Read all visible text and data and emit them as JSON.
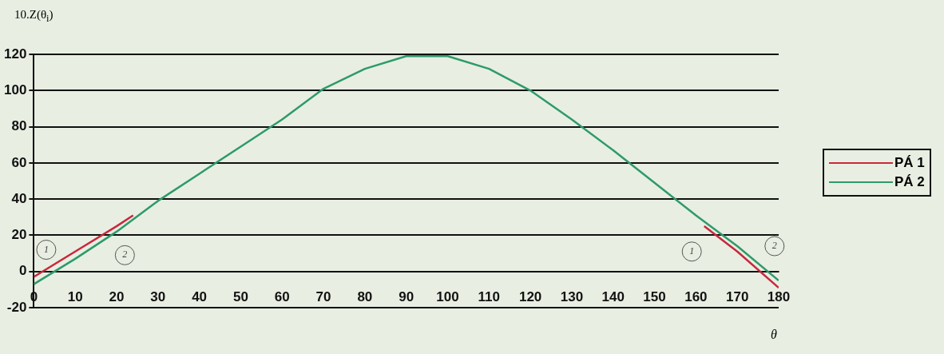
{
  "chart_data": {
    "type": "line",
    "xlabel": "θ",
    "ylabel": "10.Z(θ$_{i}$)",
    "xlim": [
      0,
      180
    ],
    "xticks": [
      0,
      10,
      20,
      30,
      40,
      50,
      60,
      70,
      80,
      90,
      100,
      110,
      120,
      130,
      140,
      150,
      160,
      170,
      180
    ],
    "ylim": [
      -20,
      120
    ],
    "yticks": [
      -20,
      0,
      20,
      40,
      60,
      80,
      100,
      120
    ],
    "grid": "y",
    "legend": "right",
    "marker": "none",
    "line_style": "solid",
    "series": [
      {
        "name": "PÁ 1",
        "color": "#c8283c",
        "x": [
          0,
          10,
          20,
          24,
          100,
          162,
          170,
          180
        ],
        "values": [
          -3,
          11,
          25,
          31,
          null,
          25,
          11,
          -9
        ]
      },
      {
        "name": "PÁ 2",
        "color": "#2e9a6a",
        "x": [
          0,
          10,
          20,
          30,
          40,
          50,
          60,
          70,
          80,
          90,
          100,
          110,
          120,
          130,
          140,
          150,
          160,
          170,
          180
        ],
        "values": [
          -7,
          7,
          22,
          39,
          54,
          69,
          84,
          101,
          112,
          119,
          119,
          112,
          100,
          84,
          67,
          49,
          31,
          14,
          -5
        ]
      }
    ],
    "annotations": [
      {
        "text": "1",
        "x": 3,
        "y": 12
      },
      {
        "text": "2",
        "x": 22,
        "y": 9
      },
      {
        "text": "1",
        "x": 159,
        "y": 11
      },
      {
        "text": "2",
        "x": 179,
        "y": 14
      }
    ]
  }
}
